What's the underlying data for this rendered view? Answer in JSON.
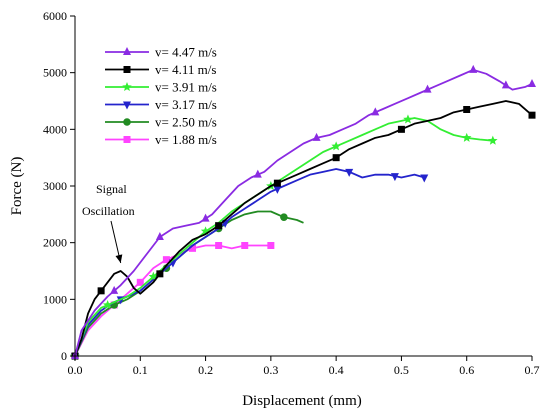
{
  "chart_data": {
    "type": "line",
    "title": "",
    "xlabel": "Displacement (mm)",
    "ylabel": "Force  (N)",
    "xlim": [
      0,
      0.7
    ],
    "ylim": [
      0,
      6000
    ],
    "x_ticks": [
      "0.0",
      "0.1",
      "0.2",
      "0.3",
      "0.4",
      "0.5",
      "0.6",
      "0.7"
    ],
    "y_ticks": [
      "0",
      "1000",
      "2000",
      "3000",
      "4000",
      "5000",
      "6000"
    ],
    "grid": false,
    "legend_position": "top-left",
    "annotation": {
      "lines": [
        "Signal",
        "Oscillation"
      ],
      "arrow_target": [
        0.07,
        1500
      ]
    },
    "series": [
      {
        "name": "v= 4.47 m/s",
        "color": "#8a2be2",
        "marker": "triangle-up",
        "x": [
          0.0,
          0.01,
          0.03,
          0.05,
          0.07,
          0.09,
          0.11,
          0.13,
          0.15,
          0.17,
          0.19,
          0.21,
          0.23,
          0.25,
          0.27,
          0.29,
          0.31,
          0.33,
          0.35,
          0.37,
          0.39,
          0.41,
          0.43,
          0.45,
          0.47,
          0.49,
          0.51,
          0.53,
          0.55,
          0.57,
          0.59,
          0.61,
          0.63,
          0.65,
          0.67,
          0.69,
          0.7
        ],
        "y": [
          0,
          450,
          800,
          1050,
          1250,
          1500,
          1800,
          2100,
          2250,
          2300,
          2350,
          2500,
          2750,
          3000,
          3150,
          3250,
          3450,
          3600,
          3750,
          3850,
          3900,
          4000,
          4100,
          4250,
          4350,
          4450,
          4550,
          4650,
          4750,
          4850,
          4950,
          5050,
          4980,
          4850,
          4700,
          4750,
          4800
        ],
        "marker_x": [
          0.0,
          0.06,
          0.13,
          0.2,
          0.28,
          0.37,
          0.46,
          0.54,
          0.61,
          0.66,
          0.7
        ]
      },
      {
        "name": "v= 4.11 m/s",
        "color": "#000000",
        "marker": "square",
        "x": [
          0.0,
          0.01,
          0.02,
          0.03,
          0.04,
          0.05,
          0.06,
          0.07,
          0.08,
          0.09,
          0.1,
          0.12,
          0.14,
          0.16,
          0.18,
          0.2,
          0.22,
          0.24,
          0.26,
          0.28,
          0.3,
          0.32,
          0.34,
          0.36,
          0.38,
          0.4,
          0.42,
          0.44,
          0.46,
          0.48,
          0.5,
          0.52,
          0.54,
          0.56,
          0.58,
          0.6,
          0.62,
          0.64,
          0.66,
          0.68,
          0.7
        ],
        "y": [
          0,
          300,
          750,
          1000,
          1150,
          1300,
          1450,
          1500,
          1400,
          1200,
          1100,
          1300,
          1600,
          1850,
          2050,
          2150,
          2300,
          2500,
          2700,
          2850,
          3000,
          3100,
          3200,
          3300,
          3400,
          3500,
          3650,
          3750,
          3850,
          3900,
          4000,
          4100,
          4150,
          4200,
          4300,
          4350,
          4400,
          4450,
          4500,
          4450,
          4250
        ],
        "marker_x": [
          0.0,
          0.04,
          0.13,
          0.22,
          0.31,
          0.4,
          0.5,
          0.6,
          0.7
        ]
      },
      {
        "name": "v= 3.91 m/s",
        "color": "#33ee33",
        "marker": "star",
        "x": [
          0.0,
          0.02,
          0.04,
          0.06,
          0.08,
          0.1,
          0.12,
          0.14,
          0.16,
          0.18,
          0.2,
          0.22,
          0.24,
          0.26,
          0.28,
          0.3,
          0.32,
          0.34,
          0.36,
          0.38,
          0.4,
          0.42,
          0.44,
          0.46,
          0.48,
          0.5,
          0.52,
          0.54,
          0.56,
          0.58,
          0.6,
          0.62,
          0.64
        ],
        "y": [
          0,
          600,
          850,
          950,
          1050,
          1200,
          1400,
          1600,
          1800,
          2000,
          2200,
          2350,
          2550,
          2700,
          2850,
          3000,
          3150,
          3300,
          3450,
          3600,
          3700,
          3800,
          3900,
          4000,
          4100,
          4150,
          4200,
          4150,
          4000,
          3900,
          3850,
          3820,
          3800
        ],
        "marker_x": [
          0.0,
          0.05,
          0.12,
          0.2,
          0.3,
          0.4,
          0.51,
          0.6,
          0.64
        ]
      },
      {
        "name": "v= 3.17 m/s",
        "color": "#2424cc",
        "marker": "triangle-down",
        "x": [
          0.0,
          0.02,
          0.04,
          0.06,
          0.08,
          0.1,
          0.12,
          0.14,
          0.16,
          0.18,
          0.2,
          0.22,
          0.24,
          0.26,
          0.28,
          0.3,
          0.32,
          0.34,
          0.36,
          0.38,
          0.4,
          0.42,
          0.44,
          0.46,
          0.48,
          0.5,
          0.52,
          0.535
        ],
        "y": [
          0,
          550,
          800,
          950,
          1050,
          1150,
          1350,
          1550,
          1750,
          1950,
          2100,
          2250,
          2450,
          2600,
          2750,
          2900,
          3000,
          3100,
          3200,
          3250,
          3300,
          3250,
          3150,
          3200,
          3200,
          3150,
          3200,
          3150
        ],
        "marker_x": [
          0.0,
          0.07,
          0.15,
          0.23,
          0.31,
          0.42,
          0.49,
          0.535
        ]
      },
      {
        "name": "v= 2.50 m/s",
        "color": "#228b22",
        "marker": "circle",
        "x": [
          0.0,
          0.02,
          0.04,
          0.06,
          0.08,
          0.1,
          0.12,
          0.14,
          0.16,
          0.18,
          0.2,
          0.22,
          0.24,
          0.26,
          0.28,
          0.3,
          0.32,
          0.34,
          0.35
        ],
        "y": [
          0,
          500,
          750,
          900,
          1000,
          1150,
          1350,
          1550,
          1750,
          1950,
          2100,
          2250,
          2400,
          2500,
          2550,
          2550,
          2450,
          2400,
          2350
        ],
        "marker_x": [
          0.0,
          0.06,
          0.14,
          0.22,
          0.32
        ]
      },
      {
        "name": "v= 1.88 m/s",
        "color": "#ff44ff",
        "marker": "square",
        "x": [
          0.0,
          0.02,
          0.04,
          0.06,
          0.08,
          0.1,
          0.12,
          0.14,
          0.16,
          0.18,
          0.2,
          0.22,
          0.24,
          0.26,
          0.28,
          0.3
        ],
        "y": [
          0,
          450,
          700,
          900,
          1100,
          1300,
          1550,
          1700,
          1800,
          1900,
          1950,
          1950,
          1900,
          1950,
          1950,
          1950
        ],
        "marker_x": [
          0.0,
          0.06,
          0.1,
          0.14,
          0.18,
          0.22,
          0.26,
          0.3
        ]
      }
    ]
  }
}
